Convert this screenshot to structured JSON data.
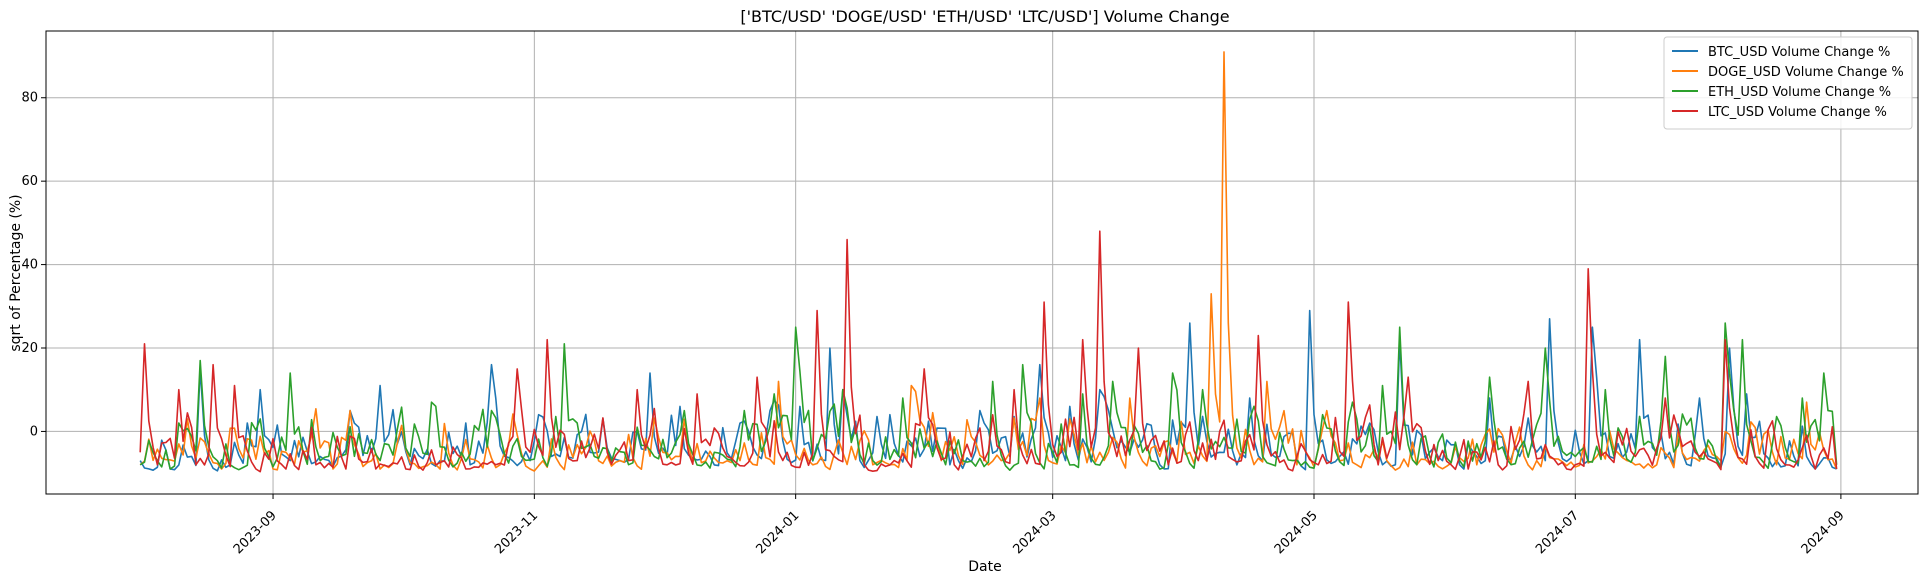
{
  "chart_data": {
    "type": "line",
    "title": "['BTC/USD' 'DOGE/USD' 'ETH/USD' 'LTC/USD'] Volume Change",
    "xlabel": "Date",
    "ylabel": "sqrt of Percentage (%)",
    "x_range": [
      "2023-07-10",
      "2024-09-19"
    ],
    "ylim": [
      -15,
      96
    ],
    "x_ticks": [
      "2023-09",
      "2023-11",
      "2024-01",
      "2024-03",
      "2024-05",
      "2024-07",
      "2024-09"
    ],
    "y_ticks": [
      0,
      20,
      40,
      60,
      80
    ],
    "grid": true,
    "legend": "top-right",
    "start_date": "2023-08-01",
    "end_date": "2024-08-31",
    "series": [
      {
        "name": "BTC_USD Volume Change %",
        "color": "#1f77b4",
        "points": [
          [
            "2023-08-01",
            -7
          ],
          [
            "2023-08-08",
            -9
          ],
          [
            "2023-08-15",
            15
          ],
          [
            "2023-08-22",
            -8
          ],
          [
            "2023-08-29",
            10
          ],
          [
            "2023-09-05",
            -7
          ],
          [
            "2023-09-12",
            -6
          ],
          [
            "2023-09-19",
            5
          ],
          [
            "2023-09-26",
            11
          ],
          [
            "2023-10-03",
            -8
          ],
          [
            "2023-10-10",
            -7
          ],
          [
            "2023-10-17",
            -8
          ],
          [
            "2023-10-22",
            16
          ],
          [
            "2023-10-31",
            -7
          ],
          [
            "2023-11-07",
            -6
          ],
          [
            "2023-11-14",
            -5
          ],
          [
            "2023-11-21",
            -7
          ],
          [
            "2023-11-28",
            14
          ],
          [
            "2023-12-05",
            6
          ],
          [
            "2023-12-12",
            -6
          ],
          [
            "2023-12-19",
            2
          ],
          [
            "2023-12-26",
            5
          ],
          [
            "2024-01-02",
            6
          ],
          [
            "2024-01-09",
            20
          ],
          [
            "2024-01-12",
            10
          ],
          [
            "2024-01-16",
            -7
          ],
          [
            "2024-01-23",
            4
          ],
          [
            "2024-01-30",
            -6
          ],
          [
            "2024-02-06",
            -8
          ],
          [
            "2024-02-13",
            5
          ],
          [
            "2024-02-20",
            -6
          ],
          [
            "2024-02-27",
            16
          ],
          [
            "2024-03-05",
            6
          ],
          [
            "2024-03-12",
            10
          ],
          [
            "2024-03-19",
            -5
          ],
          [
            "2024-03-26",
            -8
          ],
          [
            "2024-04-02",
            26
          ],
          [
            "2024-04-09",
            -5
          ],
          [
            "2024-04-16",
            8
          ],
          [
            "2024-04-23",
            -6
          ],
          [
            "2024-04-30",
            29
          ],
          [
            "2024-05-07",
            -6
          ],
          [
            "2024-05-14",
            2
          ],
          [
            "2024-05-21",
            22
          ],
          [
            "2024-05-28",
            -5
          ],
          [
            "2024-06-04",
            -8
          ],
          [
            "2024-06-11",
            8
          ],
          [
            "2024-06-18",
            -6
          ],
          [
            "2024-06-25",
            27
          ],
          [
            "2024-07-02",
            -5
          ],
          [
            "2024-07-05",
            25
          ],
          [
            "2024-07-09",
            -6
          ],
          [
            "2024-07-16",
            22
          ],
          [
            "2024-07-23",
            -5
          ],
          [
            "2024-07-30",
            8
          ],
          [
            "2024-08-06",
            20
          ],
          [
            "2024-08-10",
            9
          ],
          [
            "2024-08-17",
            -7
          ],
          [
            "2024-08-24",
            -6
          ],
          [
            "2024-08-31",
            -9
          ]
        ]
      },
      {
        "name": "DOGE_USD Volume Change %",
        "color": "#ff7f0e",
        "points": [
          [
            "2023-08-01",
            -8
          ],
          [
            "2023-08-12",
            3
          ],
          [
            "2023-08-20",
            -9
          ],
          [
            "2023-09-01",
            -9
          ],
          [
            "2023-09-15",
            -9
          ],
          [
            "2023-09-19",
            5
          ],
          [
            "2023-09-26",
            -9
          ],
          [
            "2023-10-10",
            -9
          ],
          [
            "2023-10-24",
            -8
          ],
          [
            "2023-11-07",
            -8
          ],
          [
            "2023-11-21",
            -7
          ],
          [
            "2023-12-05",
            -6
          ],
          [
            "2023-12-19",
            -7
          ],
          [
            "2023-12-28",
            12
          ],
          [
            "2024-01-05",
            -8
          ],
          [
            "2024-01-19",
            -8
          ],
          [
            "2024-01-28",
            11
          ],
          [
            "2024-02-04",
            -7
          ],
          [
            "2024-02-18",
            -7
          ],
          [
            "2024-02-27",
            8
          ],
          [
            "2024-03-05",
            3
          ],
          [
            "2024-03-12",
            -5
          ],
          [
            "2024-03-19",
            8
          ],
          [
            "2024-03-26",
            -6
          ],
          [
            "2024-04-02",
            -5
          ],
          [
            "2024-04-07",
            33
          ],
          [
            "2024-04-10",
            91
          ],
          [
            "2024-04-13",
            -4
          ],
          [
            "2024-04-20",
            12
          ],
          [
            "2024-04-27",
            -8
          ],
          [
            "2024-05-04",
            5
          ],
          [
            "2024-05-11",
            -8
          ],
          [
            "2024-05-18",
            -7
          ],
          [
            "2024-05-25",
            -8
          ],
          [
            "2024-06-08",
            -8
          ],
          [
            "2024-06-22",
            -7
          ],
          [
            "2024-07-06",
            -6
          ],
          [
            "2024-07-20",
            -8
          ],
          [
            "2024-08-03",
            -6
          ],
          [
            "2024-08-17",
            -8
          ],
          [
            "2024-08-24",
            7
          ],
          [
            "2024-08-31",
            -9
          ]
        ]
      },
      {
        "name": "ETH_USD Volume Change %",
        "color": "#2ca02c",
        "points": [
          [
            "2023-08-01",
            -8
          ],
          [
            "2023-08-08",
            -9
          ],
          [
            "2023-08-15",
            17
          ],
          [
            "2023-08-22",
            -8
          ],
          [
            "2023-08-29",
            3
          ],
          [
            "2023-09-05",
            14
          ],
          [
            "2023-09-12",
            -7
          ],
          [
            "2023-09-26",
            -7
          ],
          [
            "2023-10-03",
            -6
          ],
          [
            "2023-10-08",
            7
          ],
          [
            "2023-10-15",
            -5
          ],
          [
            "2023-10-22",
            5
          ],
          [
            "2023-10-29",
            -6
          ],
          [
            "2023-11-05",
            -5
          ],
          [
            "2023-11-08",
            21
          ],
          [
            "2023-11-15",
            -6
          ],
          [
            "2023-11-22",
            -5
          ],
          [
            "2023-11-29",
            -6
          ],
          [
            "2023-12-06",
            5
          ],
          [
            "2023-12-13",
            -5
          ],
          [
            "2023-12-20",
            5
          ],
          [
            "2023-12-27",
            9
          ],
          [
            "2024-01-01",
            25
          ],
          [
            "2024-01-05",
            -7
          ],
          [
            "2024-01-12",
            10
          ],
          [
            "2024-01-19",
            -7
          ],
          [
            "2024-01-26",
            8
          ],
          [
            "2024-02-02",
            -6
          ],
          [
            "2024-02-09",
            -7
          ],
          [
            "2024-02-16",
            12
          ],
          [
            "2024-02-23",
            16
          ],
          [
            "2024-03-01",
            -5
          ],
          [
            "2024-03-08",
            9
          ],
          [
            "2024-03-15",
            12
          ],
          [
            "2024-03-22",
            -5
          ],
          [
            "2024-03-29",
            14
          ],
          [
            "2024-04-05",
            10
          ],
          [
            "2024-04-12",
            -4
          ],
          [
            "2024-04-19",
            -6
          ],
          [
            "2024-04-26",
            -7
          ],
          [
            "2024-05-03",
            4
          ],
          [
            "2024-05-10",
            7
          ],
          [
            "2024-05-17",
            11
          ],
          [
            "2024-05-21",
            25
          ],
          [
            "2024-05-28",
            -6
          ],
          [
            "2024-06-04",
            -7
          ],
          [
            "2024-06-11",
            13
          ],
          [
            "2024-06-18",
            -4
          ],
          [
            "2024-06-24",
            20
          ],
          [
            "2024-07-01",
            -6
          ],
          [
            "2024-07-08",
            10
          ],
          [
            "2024-07-15",
            -5
          ],
          [
            "2024-07-22",
            18
          ],
          [
            "2024-07-29",
            -4
          ],
          [
            "2024-08-05",
            26
          ],
          [
            "2024-08-09",
            22
          ],
          [
            "2024-08-16",
            -3
          ],
          [
            "2024-08-23",
            8
          ],
          [
            "2024-08-28",
            14
          ],
          [
            "2024-08-31",
            -8
          ]
        ]
      },
      {
        "name": "LTC_USD Volume Change %",
        "color": "#d62728",
        "points": [
          [
            "2023-08-01",
            -5
          ],
          [
            "2023-08-02",
            21
          ],
          [
            "2023-08-05",
            -8
          ],
          [
            "2023-08-10",
            10
          ],
          [
            "2023-08-14",
            -8
          ],
          [
            "2023-08-18",
            16
          ],
          [
            "2023-08-23",
            11
          ],
          [
            "2023-08-28",
            -9
          ],
          [
            "2023-09-04",
            -9
          ],
          [
            "2023-09-11",
            -8
          ],
          [
            "2023-09-18",
            -9
          ],
          [
            "2023-09-25",
            -9
          ],
          [
            "2023-10-02",
            -9
          ],
          [
            "2023-10-09",
            -8
          ],
          [
            "2023-10-16",
            -9
          ],
          [
            "2023-10-23",
            -8
          ],
          [
            "2023-10-28",
            15
          ],
          [
            "2023-11-04",
            22
          ],
          [
            "2023-11-11",
            -7
          ],
          [
            "2023-11-18",
            -5
          ],
          [
            "2023-11-25",
            10
          ],
          [
            "2023-12-02",
            -8
          ],
          [
            "2023-12-09",
            9
          ],
          [
            "2023-12-16",
            -6
          ],
          [
            "2023-12-23",
            13
          ],
          [
            "2023-12-30",
            -5
          ],
          [
            "2024-01-06",
            29
          ],
          [
            "2024-01-10",
            -6
          ],
          [
            "2024-01-13",
            46
          ],
          [
            "2024-01-17",
            -8
          ],
          [
            "2024-01-24",
            -7
          ],
          [
            "2024-01-31",
            15
          ],
          [
            "2024-02-07",
            -8
          ],
          [
            "2024-02-14",
            -7
          ],
          [
            "2024-02-21",
            10
          ],
          [
            "2024-02-28",
            31
          ],
          [
            "2024-03-03",
            -5
          ],
          [
            "2024-03-08",
            22
          ],
          [
            "2024-03-12",
            48
          ],
          [
            "2024-03-16",
            -6
          ],
          [
            "2024-03-21",
            20
          ],
          [
            "2024-03-28",
            -8
          ],
          [
            "2024-04-04",
            -7
          ],
          [
            "2024-04-11",
            -6
          ],
          [
            "2024-04-18",
            23
          ],
          [
            "2024-04-25",
            -9
          ],
          [
            "2024-05-02",
            -8
          ],
          [
            "2024-05-09",
            31
          ],
          [
            "2024-05-16",
            -8
          ],
          [
            "2024-05-23",
            13
          ],
          [
            "2024-05-30",
            -7
          ],
          [
            "2024-06-06",
            -9
          ],
          [
            "2024-06-13",
            -8
          ],
          [
            "2024-06-20",
            12
          ],
          [
            "2024-06-27",
            -8
          ],
          [
            "2024-07-04",
            39
          ],
          [
            "2024-07-08",
            -5
          ],
          [
            "2024-07-15",
            -6
          ],
          [
            "2024-07-22",
            8
          ],
          [
            "2024-07-29",
            -5
          ],
          [
            "2024-08-05",
            22
          ],
          [
            "2024-08-12",
            -6
          ],
          [
            "2024-08-19",
            -8
          ],
          [
            "2024-08-26",
            -9
          ],
          [
            "2024-08-31",
            -9
          ]
        ]
      }
    ]
  }
}
